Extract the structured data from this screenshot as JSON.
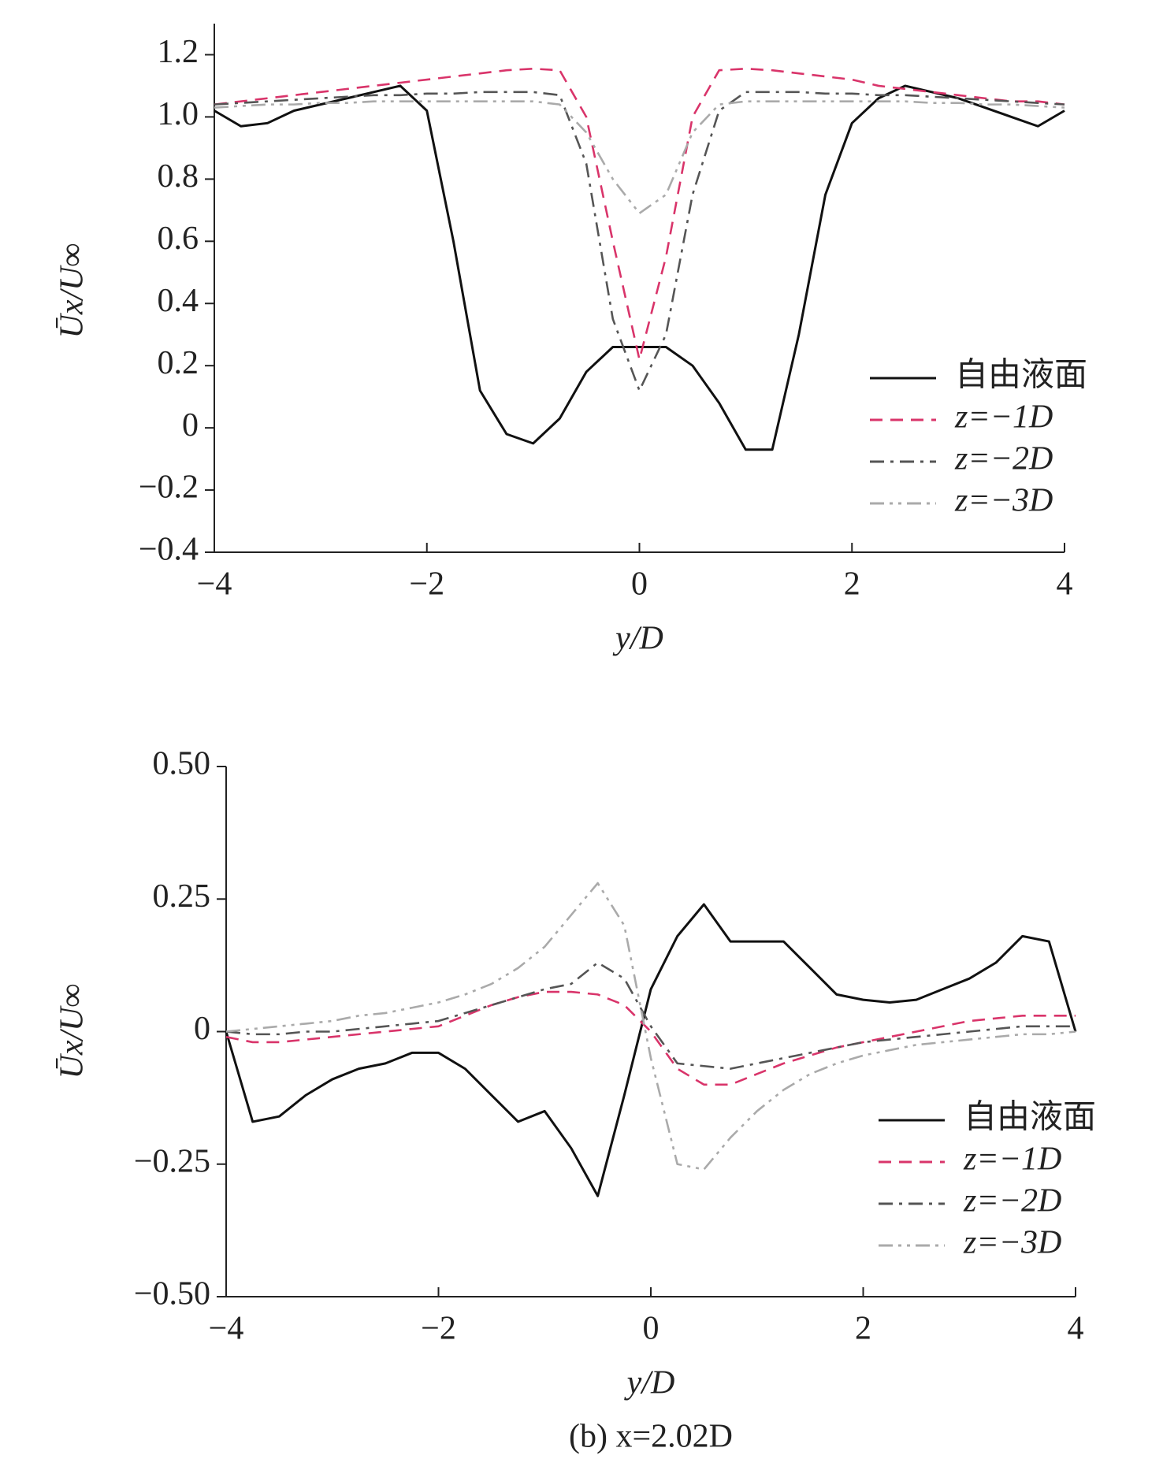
{
  "chart_data": [
    {
      "type": "line",
      "y_label": "Ūx/U∞",
      "x_label": "y/D",
      "x": [
        -4,
        -3.75,
        -3.5,
        -3.25,
        -3,
        -2.75,
        -2.5,
        -2.25,
        -2,
        -1.75,
        -1.5,
        -1.25,
        -1,
        -0.75,
        -0.5,
        -0.25,
        0,
        0.25,
        0.5,
        0.75,
        1,
        1.25,
        1.5,
        1.75,
        2,
        2.25,
        2.5,
        2.75,
        3,
        3.25,
        3.5,
        3.75,
        4
      ],
      "xlim": [
        -4,
        4
      ],
      "xticks": [
        {
          "value": -4,
          "label": "−4"
        },
        {
          "value": -2,
          "label": "−2"
        },
        0,
        2,
        4
      ],
      "ylim": [
        -0.4,
        1.3
      ],
      "yticks": [
        {
          "value": -0.4,
          "label": "−0.4"
        },
        {
          "value": -0.2,
          "label": "−0.2"
        },
        0,
        0.2,
        0.4,
        0.6,
        0.8,
        {
          "value": 1.0,
          "label": "1.0"
        },
        1.2
      ],
      "series": [
        {
          "name": "自由液面",
          "color": "#111111",
          "dash": "solid",
          "values": [
            1.02,
            0.97,
            0.98,
            1.02,
            1.04,
            1.06,
            1.08,
            1.1,
            1.02,
            0.6,
            0.12,
            -0.02,
            -0.05,
            0.03,
            0.18,
            0.26,
            0.26,
            0.26,
            0.2,
            0.08,
            -0.07,
            -0.07,
            0.3,
            0.75,
            0.98,
            1.06,
            1.1,
            1.08,
            1.06,
            1.03,
            1.0,
            0.97,
            1.02
          ]
        },
        {
          "name": "z=−1D",
          "color": "#d9346a",
          "dash": "dashed",
          "values": [
            1.04,
            1.05,
            1.06,
            1.07,
            1.08,
            1.09,
            1.1,
            1.11,
            1.12,
            1.13,
            1.14,
            1.15,
            1.155,
            1.15,
            1.0,
            0.6,
            0.22,
            0.55,
            1.0,
            1.15,
            1.155,
            1.15,
            1.14,
            1.13,
            1.12,
            1.1,
            1.09,
            1.08,
            1.07,
            1.06,
            1.05,
            1.05,
            1.04
          ]
        },
        {
          "name": "z=−2D",
          "color": "#555555",
          "dash": "dashdot",
          "values": [
            1.04,
            1.045,
            1.05,
            1.055,
            1.06,
            1.065,
            1.07,
            1.07,
            1.075,
            1.075,
            1.08,
            1.08,
            1.08,
            1.07,
            0.85,
            0.35,
            0.12,
            0.3,
            0.75,
            1.02,
            1.08,
            1.08,
            1.08,
            1.075,
            1.075,
            1.07,
            1.07,
            1.065,
            1.06,
            1.055,
            1.05,
            1.045,
            1.04
          ]
        },
        {
          "name": "z=−3D",
          "color": "#aaaaaa",
          "dash": "dashdotdot",
          "values": [
            1.03,
            1.035,
            1.04,
            1.04,
            1.045,
            1.045,
            1.05,
            1.05,
            1.05,
            1.05,
            1.05,
            1.05,
            1.05,
            1.04,
            0.95,
            0.8,
            0.69,
            0.75,
            0.95,
            1.04,
            1.05,
            1.05,
            1.05,
            1.05,
            1.05,
            1.05,
            1.05,
            1.045,
            1.045,
            1.04,
            1.04,
            1.035,
            1.03
          ]
        }
      ]
    },
    {
      "type": "line",
      "y_label": "Ūx/U∞",
      "x_label": "y/D",
      "caption": "(b) x=2.02D",
      "x": [
        -4,
        -3.75,
        -3.5,
        -3.25,
        -3,
        -2.75,
        -2.5,
        -2.25,
        -2,
        -1.75,
        -1.5,
        -1.25,
        -1,
        -0.75,
        -0.5,
        -0.25,
        0,
        0.25,
        0.5,
        0.75,
        1,
        1.25,
        1.5,
        1.75,
        2,
        2.25,
        2.5,
        2.75,
        3,
        3.25,
        3.5,
        3.75,
        4
      ],
      "xlim": [
        -4,
        4
      ],
      "xticks": [
        {
          "value": -4,
          "label": "−4"
        },
        {
          "value": -2,
          "label": "−2"
        },
        0,
        2,
        4
      ],
      "ylim": [
        -0.5,
        0.5
      ],
      "yticks": [
        {
          "value": -0.5,
          "label": "−0.50"
        },
        {
          "value": -0.25,
          "label": "−0.25"
        },
        0,
        0.25,
        {
          "value": 0.5,
          "label": "0.50"
        }
      ],
      "series": [
        {
          "name": "自由液面",
          "color": "#111111",
          "dash": "solid",
          "values": [
            0,
            -0.17,
            -0.16,
            -0.12,
            -0.09,
            -0.07,
            -0.06,
            -0.04,
            -0.04,
            -0.07,
            -0.12,
            -0.17,
            -0.15,
            -0.22,
            -0.31,
            -0.12,
            0.08,
            0.18,
            0.24,
            0.17,
            0.17,
            0.17,
            0.12,
            0.07,
            0.06,
            0.055,
            0.06,
            0.08,
            0.1,
            0.13,
            0.18,
            0.17,
            0
          ]
        },
        {
          "name": "z=−1D",
          "color": "#d9346a",
          "dash": "dashed",
          "values": [
            -0.01,
            -0.02,
            -0.02,
            -0.015,
            -0.01,
            -0.005,
            0,
            0.005,
            0.01,
            0.03,
            0.05,
            0.065,
            0.075,
            0.075,
            0.07,
            0.05,
            0,
            -0.07,
            -0.1,
            -0.1,
            -0.08,
            -0.06,
            -0.045,
            -0.03,
            -0.02,
            -0.01,
            0,
            0.01,
            0.02,
            0.025,
            0.03,
            0.03,
            0.03
          ]
        },
        {
          "name": "z=−2D",
          "color": "#555555",
          "dash": "dashdot",
          "values": [
            0,
            -0.005,
            -0.005,
            0,
            0,
            0.005,
            0.01,
            0.015,
            0.02,
            0.035,
            0.05,
            0.065,
            0.08,
            0.09,
            0.13,
            0.1,
            0.01,
            -0.06,
            -0.065,
            -0.07,
            -0.06,
            -0.05,
            -0.04,
            -0.03,
            -0.02,
            -0.015,
            -0.01,
            -0.005,
            0,
            0.005,
            0.01,
            0.01,
            0.01
          ]
        },
        {
          "name": "z=−3D",
          "color": "#aaaaaa",
          "dash": "dashdotdot",
          "values": [
            0,
            0.005,
            0.01,
            0.015,
            0.02,
            0.03,
            0.035,
            0.045,
            0.055,
            0.07,
            0.09,
            0.12,
            0.16,
            0.22,
            0.28,
            0.2,
            -0.05,
            -0.25,
            -0.26,
            -0.2,
            -0.15,
            -0.11,
            -0.08,
            -0.06,
            -0.045,
            -0.035,
            -0.025,
            -0.02,
            -0.015,
            -0.01,
            -0.005,
            -0.005,
            0
          ]
        }
      ]
    }
  ]
}
